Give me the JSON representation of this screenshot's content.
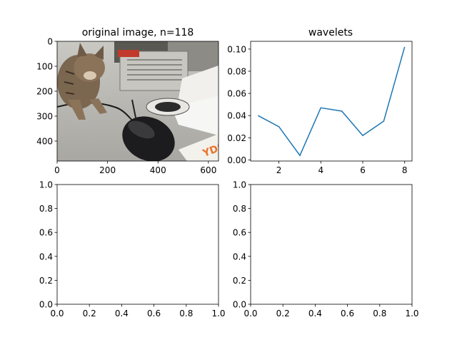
{
  "chart_data": [
    {
      "type": "image",
      "title": "original image, n=118",
      "description": "photo of a tabby kitten sniffing a black computer mouse on a desk",
      "xlim": [
        0,
        640
      ],
      "ylim": [
        480,
        0
      ],
      "xticks": [
        0,
        200,
        400,
        600
      ],
      "yticks": [
        0,
        100,
        200,
        300,
        400
      ],
      "xtick_labels": [
        "0",
        "200",
        "400",
        "600"
      ],
      "ytick_labels": [
        "0",
        "100",
        "200",
        "300",
        "400"
      ]
    },
    {
      "type": "line",
      "title": "wavelets",
      "x": [
        1,
        2,
        3,
        4,
        5,
        6,
        7,
        8
      ],
      "y": [
        0.04,
        0.03,
        0.004,
        0.047,
        0.044,
        0.022,
        0.035,
        0.102
      ],
      "color": "#1f77b4",
      "xlim": [
        0.65,
        8.35
      ],
      "ylim": [
        -0.001,
        0.107
      ],
      "xticks": [
        2,
        4,
        6,
        8
      ],
      "yticks": [
        0.0,
        0.02,
        0.04,
        0.06,
        0.08,
        0.1
      ],
      "xtick_labels": [
        "2",
        "4",
        "6",
        "8"
      ],
      "ytick_labels": [
        "0.00",
        "0.02",
        "0.04",
        "0.06",
        "0.08",
        "0.10"
      ]
    },
    {
      "type": "empty",
      "xlim": [
        0,
        1
      ],
      "ylim": [
        0,
        1
      ],
      "xticks": [
        0,
        0.2,
        0.4,
        0.6,
        0.8,
        1
      ],
      "yticks": [
        0,
        0.2,
        0.4,
        0.6,
        0.8,
        1
      ],
      "xtick_labels": [
        "0.0",
        "0.2",
        "0.4",
        "0.6",
        "0.8",
        "1.0"
      ],
      "ytick_labels": [
        "0.0",
        "0.2",
        "0.4",
        "0.6",
        "0.8",
        "1.0"
      ]
    },
    {
      "type": "empty",
      "xlim": [
        0,
        1
      ],
      "ylim": [
        0,
        1
      ],
      "xticks": [
        0,
        0.2,
        0.4,
        0.6,
        0.8,
        1
      ],
      "yticks": [
        0,
        0.2,
        0.4,
        0.6,
        0.8,
        1
      ],
      "xtick_labels": [
        "0.0",
        "0.2",
        "0.4",
        "0.6",
        "0.8",
        "1.0"
      ],
      "ytick_labels": [
        "0.0",
        "0.2",
        "0.4",
        "0.6",
        "0.8",
        "1.0"
      ]
    }
  ]
}
